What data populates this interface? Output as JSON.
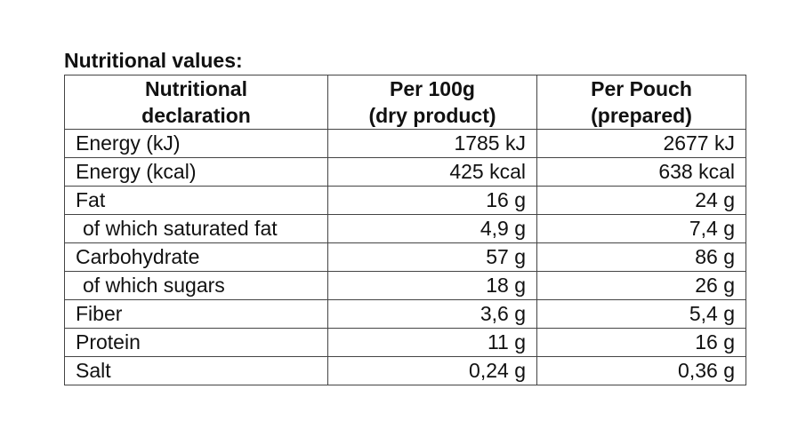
{
  "title": "Nutritional values:",
  "table": {
    "headers": [
      [
        "Nutritional",
        "declaration"
      ],
      [
        "Per 100g",
        "(dry product)"
      ],
      [
        "Per Pouch",
        "(prepared)"
      ]
    ],
    "rows": [
      [
        {
          "text": "Energy (kJ)",
          "indent": false
        },
        "1785 kJ",
        "2677 kJ"
      ],
      [
        {
          "text": "Energy (kcal)",
          "indent": false
        },
        "425 kcal",
        "638 kcal"
      ],
      [
        {
          "text": "Fat",
          "indent": false
        },
        "16 g",
        "24 g"
      ],
      [
        {
          "text": "of which saturated fat",
          "indent": true
        },
        "4,9 g",
        "7,4 g"
      ],
      [
        {
          "text": "Carbohydrate",
          "indent": false
        },
        "57 g",
        "86 g"
      ],
      [
        {
          "text": "of which sugars",
          "indent": true
        },
        "18 g",
        "26 g"
      ],
      [
        {
          "text": "Fiber",
          "indent": false
        },
        "3,6 g",
        "5,4 g"
      ],
      [
        {
          "text": "Protein",
          "indent": false
        },
        "11 g",
        "16 g"
      ],
      [
        {
          "text": "Salt",
          "indent": false
        },
        "0,24 g",
        "0,36 g"
      ]
    ]
  }
}
